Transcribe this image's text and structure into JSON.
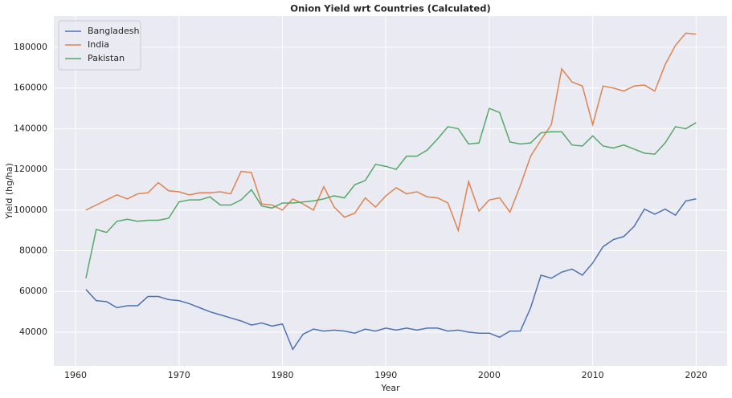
{
  "chart_data": {
    "type": "line",
    "title": "Onion Yield wrt Countries (Calculated)",
    "x_label": "Year",
    "y_label": "Yield (hg/ha)",
    "x": [
      1961,
      1962,
      1963,
      1964,
      1965,
      1966,
      1967,
      1968,
      1969,
      1970,
      1971,
      1972,
      1973,
      1974,
      1975,
      1976,
      1977,
      1978,
      1979,
      1980,
      1981,
      1982,
      1983,
      1984,
      1985,
      1986,
      1987,
      1988,
      1989,
      1990,
      1991,
      1992,
      1993,
      1994,
      1995,
      1996,
      1997,
      1998,
      1999,
      2000,
      2001,
      2002,
      2003,
      2004,
      2005,
      2006,
      2007,
      2008,
      2009,
      2010,
      2011,
      2012,
      2013,
      2014,
      2015,
      2016,
      2017,
      2018,
      2019,
      2020
    ],
    "series": [
      {
        "name": "Bangladesh",
        "color": "#4c72b0",
        "values": [
          61000,
          55500,
          55000,
          52000,
          53000,
          53000,
          57500,
          57500,
          56000,
          55500,
          54000,
          52000,
          50000,
          48500,
          47000,
          45500,
          43500,
          44500,
          43000,
          44000,
          31500,
          39000,
          41500,
          40500,
          41000,
          40500,
          39500,
          41500,
          40500,
          42000,
          41000,
          42000,
          41000,
          42000,
          42000,
          40500,
          41000,
          40000,
          39500,
          39500,
          37500,
          40500,
          40500,
          52000,
          68000,
          66500,
          69500,
          71000,
          68000,
          74000,
          82000,
          85500,
          87000,
          92000,
          100500,
          98000,
          100500,
          97500,
          104500,
          105500
        ]
      },
      {
        "name": "India",
        "color": "#dd8452",
        "values": [
          100000,
          102500,
          105000,
          107500,
          105500,
          108000,
          108500,
          113500,
          109500,
          109000,
          107500,
          108500,
          108500,
          109000,
          108000,
          119000,
          118500,
          103000,
          102500,
          100000,
          105500,
          103000,
          100000,
          111500,
          101500,
          96500,
          98500,
          106000,
          101500,
          107000,
          111000,
          108000,
          109000,
          106500,
          106000,
          103500,
          90000,
          114000,
          99500,
          105000,
          106000,
          99000,
          112000,
          126500,
          134500,
          142000,
          169500,
          163000,
          161000,
          142000,
          161000,
          160000,
          158500,
          161000,
          161500,
          158500,
          171500,
          181000,
          187000,
          186500
        ]
      },
      {
        "name": "Pakistan",
        "color": "#55a868",
        "values": [
          66500,
          90500,
          89000,
          94500,
          95500,
          94500,
          95000,
          95000,
          96000,
          104000,
          105000,
          105000,
          106500,
          102500,
          102500,
          105000,
          110000,
          102000,
          101000,
          103500,
          103500,
          104000,
          104500,
          105500,
          107000,
          106000,
          112500,
          114500,
          122500,
          121500,
          120000,
          126500,
          126500,
          129500,
          135000,
          141000,
          140000,
          132500,
          133000,
          150000,
          148000,
          133500,
          132500,
          133000,
          138000,
          138500,
          138500,
          132000,
          131500,
          136500,
          131500,
          130500,
          132000,
          130000,
          128000,
          127500,
          133000,
          141000,
          140000,
          143000
        ]
      }
    ],
    "xlim": [
      1957.9,
      2023.0
    ],
    "xticks": [
      1960,
      1970,
      1980,
      1990,
      2000,
      2010,
      2020
    ],
    "ylim": [
      23400,
      195400
    ],
    "yticks": [
      40000,
      60000,
      80000,
      100000,
      120000,
      140000,
      160000,
      180000
    ],
    "grid": true,
    "legend": "upper left"
  }
}
